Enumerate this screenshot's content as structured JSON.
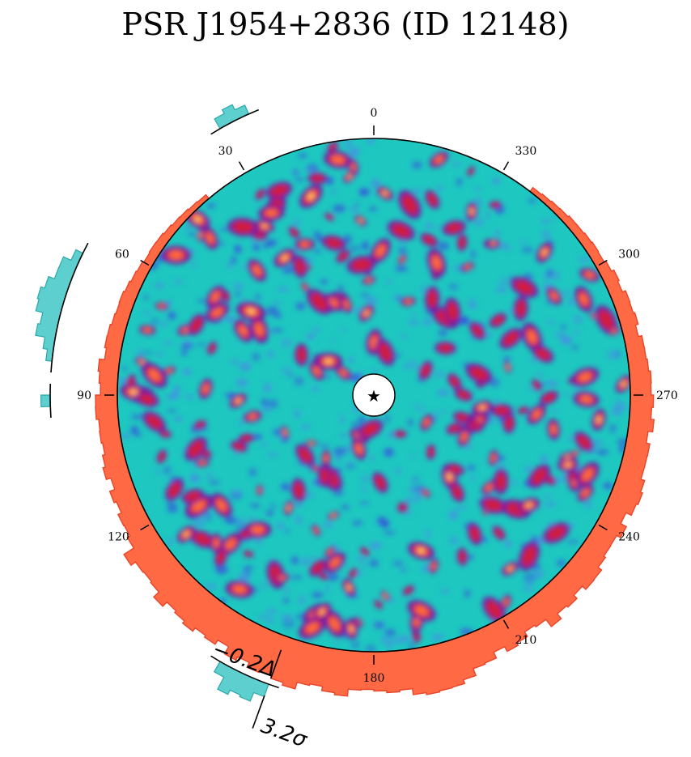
{
  "chart_data": {
    "type": "heatmap",
    "projection": "polar",
    "title": "PSR J1954+2836 (ID 12148)",
    "angle_ticks": [
      0,
      30,
      60,
      90,
      120,
      180,
      210,
      240,
      270,
      300,
      330
    ],
    "angle_direction": "counter-clockwise, 0 at top",
    "center_marker": "star",
    "colormap": [
      "#1ec8c0",
      "#3b3fe0",
      "#6a1fa8",
      "#d01a3c",
      "#ff6a3a",
      "#ffd37a"
    ],
    "outer_histogram": {
      "color": "#ff6a45",
      "edge_color": "#e8452a",
      "angle_range": [
        40,
        320
      ]
    },
    "inner_histogram": {
      "color": "#5ecfcf",
      "edge_color": "#2aa8a8"
    },
    "annotations": [
      {
        "text": "−0.2Δ",
        "angle": 160
      },
      {
        "text": "3.2σ",
        "angle": 160
      }
    ],
    "seed": 12148
  },
  "colors": {
    "background": "#1ec8c0",
    "outline": "#000000"
  }
}
